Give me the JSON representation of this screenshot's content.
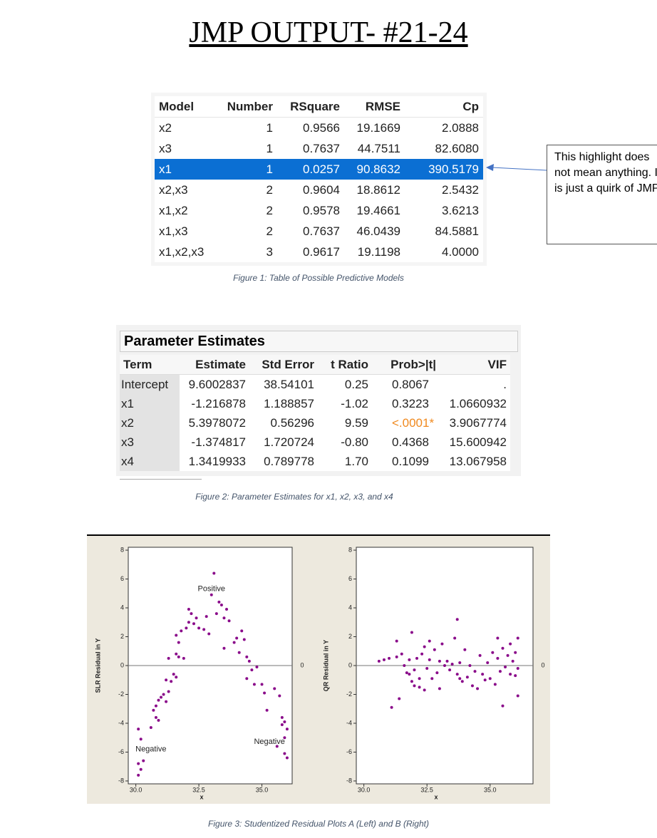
{
  "header": {
    "title": "JMP OUTPUT- #21-24"
  },
  "table1": {
    "columns": [
      "Model",
      "Number",
      "RSquare",
      "RMSE",
      "Cp"
    ],
    "rows": [
      [
        "x2",
        "1",
        "0.9566",
        "19.1669",
        "2.0888"
      ],
      [
        "x3",
        "1",
        "0.7637",
        "44.7511",
        "82.6080"
      ],
      [
        "x1",
        "1",
        "0.0257",
        "90.8632",
        "390.5179"
      ],
      [
        "x2,x3",
        "2",
        "0.9604",
        "18.8612",
        "2.5432"
      ],
      [
        "x1,x2",
        "2",
        "0.9578",
        "19.4661",
        "3.6213"
      ],
      [
        "x1,x3",
        "2",
        "0.7637",
        "46.0439",
        "84.5881"
      ],
      [
        "x1,x2,x3",
        "3",
        "0.9617",
        "19.1198",
        "4.0000"
      ]
    ],
    "highlight_row": 2,
    "caption": "Figure 1: Table of Possible Predictive Models"
  },
  "callout": "This highlight does not mean anything. It is just a quirk of JMP.",
  "table2": {
    "title": "Parameter Estimates",
    "columns": [
      "Term",
      "Estimate",
      "Std Error",
      "t Ratio",
      "Prob>|t|",
      "VIF"
    ],
    "rows": [
      [
        "Intercept",
        "9.6002837",
        "38.54101",
        "0.25",
        "0.8067",
        "."
      ],
      [
        "x1",
        "-1.216878",
        "1.188857",
        "-1.02",
        "0.3223",
        "1.0660932"
      ],
      [
        "x2",
        "5.3978072",
        "0.56296",
        "9.59",
        "<.0001*",
        "3.9067774"
      ],
      [
        "x3",
        "-1.374817",
        "1.720724",
        "-0.80",
        "0.4368",
        "15.600942"
      ],
      [
        "x4",
        "1.3419933",
        "0.789778",
        "1.70",
        "0.1099",
        "13.067958"
      ]
    ],
    "caption": "Figure 2: Parameter Estimates for x1, x2, x3, and x4"
  },
  "chart_data": [
    {
      "type": "scatter",
      "x_label": "x",
      "y_label": "SLR Residual in Y",
      "color": "#8a0a8a",
      "xlim": [
        29.7,
        36.2
      ],
      "ylim": [
        -8.2,
        8.2
      ],
      "xticks": [
        {
          "value": 30,
          "label": "30.0"
        },
        {
          "value": 32.5,
          "label": "32.5"
        },
        {
          "value": 35,
          "label": "35.0"
        }
      ],
      "yticks": [
        -8,
        -6,
        -4,
        -2,
        0,
        2,
        4,
        6,
        8
      ],
      "reference_line": 0,
      "annotations": [
        "Positive",
        "Negative",
        "Negative"
      ],
      "x": [
        30.1,
        30.2,
        30.1,
        30.3,
        30.2,
        30.1,
        30.6,
        30.8,
        30.9,
        30.7,
        30.8,
        30.9,
        31.1,
        31.2,
        31.0,
        31.3,
        31.2,
        31.4,
        31.6,
        31.5,
        31.3,
        31.6,
        31.7,
        31.9,
        31.7,
        31.6,
        31.8,
        32.0,
        32.1,
        32.2,
        32.1,
        32.3,
        32.4,
        32.5,
        32.7,
        32.8,
        32.9,
        33.0,
        33.1,
        33.2,
        33.3,
        33.4,
        33.5,
        33.6,
        33.5,
        33.7,
        33.9,
        34.0,
        34.1,
        34.2,
        34.3,
        34.4,
        34.5,
        34.6,
        34.4,
        34.7,
        34.8,
        35.0,
        35.1,
        35.2,
        35.5,
        35.7,
        35.8,
        35.9,
        36.0,
        35.8,
        35.9,
        35.6,
        35.9,
        36.0
      ],
      "values": [
        -7.6,
        -7.2,
        -6.8,
        -6.6,
        -5.1,
        -4.4,
        -4.3,
        -3.6,
        -3.8,
        -3.1,
        -2.8,
        -2.4,
        -2.0,
        -2.5,
        -2.2,
        -1.8,
        -1.0,
        -1.1,
        -0.8,
        -0.6,
        0.5,
        0.8,
        0.6,
        0.5,
        1.6,
        2.1,
        2.4,
        2.6,
        3.0,
        3.6,
        3.9,
        2.9,
        3.3,
        2.6,
        2.5,
        3.4,
        2.2,
        4.9,
        6.4,
        3.6,
        4.4,
        4.2,
        3.3,
        3.9,
        1.2,
        3.1,
        1.6,
        1.9,
        0.9,
        2.4,
        1.8,
        0.6,
        0.3,
        -0.3,
        -0.9,
        -1.3,
        -0.1,
        -1.3,
        -1.9,
        -3.1,
        -1.6,
        -2.1,
        -3.6,
        -3.9,
        -4.4,
        -4.1,
        -5.0,
        -5.6,
        -6.1,
        -6.4
      ]
    },
    {
      "type": "scatter",
      "x_label": "x",
      "y_label": "QR Residual in Y",
      "color": "#8a0a8a",
      "xlim": [
        29.7,
        36.7
      ],
      "ylim": [
        -8.2,
        8.2
      ],
      "xticks": [
        {
          "value": 30,
          "label": "30.0"
        },
        {
          "value": 32.5,
          "label": "32.5"
        },
        {
          "value": 35,
          "label": "35.0"
        }
      ],
      "yticks": [
        -8,
        -6,
        -4,
        -2,
        0,
        2,
        4,
        6,
        8
      ],
      "reference_line": 0,
      "x": [
        30.6,
        30.8,
        31.0,
        31.1,
        31.3,
        31.3,
        31.4,
        31.5,
        31.6,
        31.7,
        31.8,
        31.8,
        31.9,
        31.9,
        32.0,
        32.0,
        32.1,
        32.2,
        32.2,
        32.3,
        32.4,
        32.4,
        32.5,
        32.6,
        32.6,
        32.7,
        32.8,
        32.9,
        33.0,
        33.0,
        33.1,
        33.2,
        33.3,
        33.4,
        33.5,
        33.6,
        33.7,
        33.7,
        33.8,
        33.8,
        33.9,
        34.0,
        34.1,
        34.2,
        34.3,
        34.4,
        34.5,
        34.6,
        34.7,
        34.8,
        34.9,
        35.0,
        35.1,
        35.2,
        35.3,
        35.3,
        35.4,
        35.5,
        35.5,
        35.6,
        35.7,
        35.8,
        35.8,
        35.9,
        36.0,
        36.0,
        36.1,
        36.1,
        36.1
      ],
      "values": [
        0.3,
        0.4,
        0.5,
        -2.9,
        1.7,
        0.6,
        -2.3,
        0.8,
        0.0,
        -0.5,
        -0.6,
        0.4,
        -1.1,
        2.3,
        -1.4,
        -0.3,
        0.5,
        -1.5,
        -0.9,
        0.8,
        -1.7,
        1.3,
        -0.2,
        0.4,
        1.7,
        -0.9,
        1.1,
        -0.5,
        0.3,
        -1.6,
        1.5,
        0.0,
        0.3,
        -0.3,
        0.1,
        1.9,
        3.2,
        -0.6,
        -0.9,
        0.2,
        -1.1,
        1.1,
        -0.8,
        0.0,
        -1.4,
        -0.4,
        -1.6,
        0.7,
        -0.6,
        -1.0,
        0.2,
        -0.9,
        0.9,
        -1.3,
        1.9,
        0.5,
        -0.4,
        -2.8,
        1.2,
        -0.1,
        0.7,
        -0.6,
        1.5,
        0.3,
        -0.7,
        0.9,
        -0.2,
        -2.1,
        1.9
      ]
    }
  ],
  "figure3_caption": "Figure 3: Studentized Residual Plots A (Left) and B (Right)"
}
